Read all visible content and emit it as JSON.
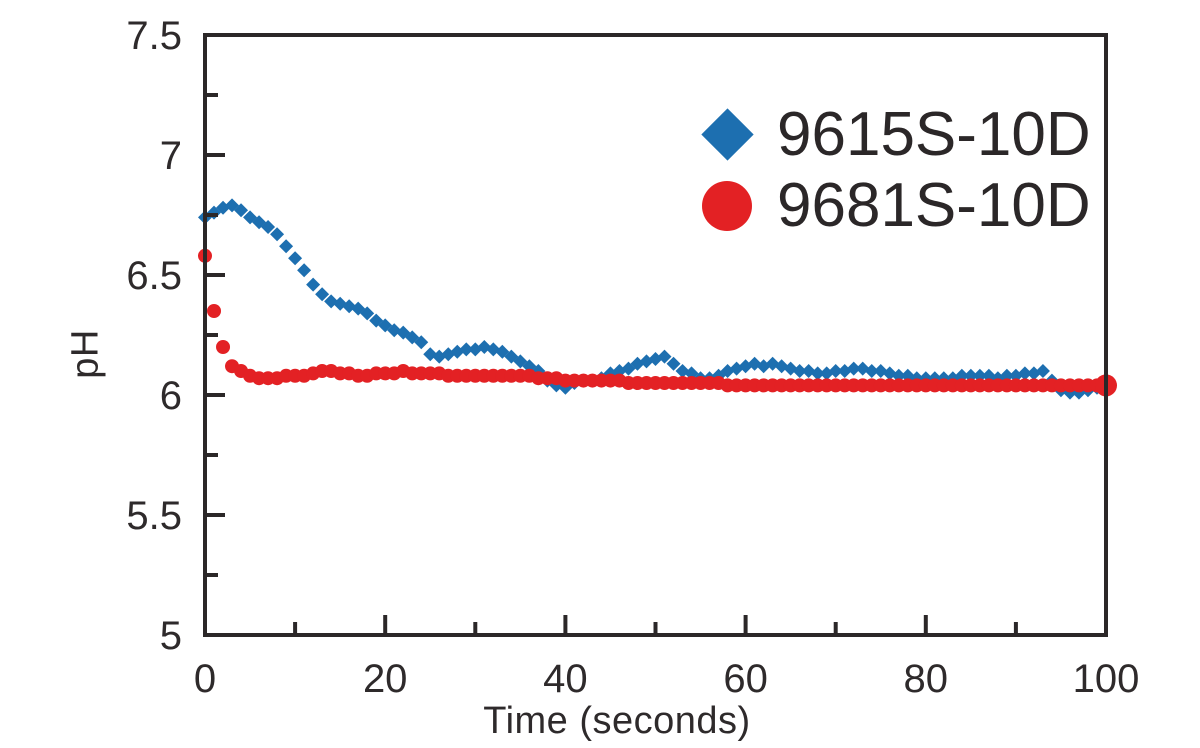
{
  "figure": {
    "background_color": "#ffffff",
    "axis_color": "#2b2728",
    "text_color": "#2e2a2b"
  },
  "chart_data": {
    "type": "scatter",
    "title": "",
    "xlabel": "Time (seconds)",
    "ylabel": "pH",
    "xlim": [
      0,
      100
    ],
    "ylim": [
      5,
      7.5
    ],
    "grid": false,
    "legend_position": "upper right",
    "x_axis": {
      "major_tick_values": [
        0,
        20,
        40,
        60,
        80,
        100
      ],
      "major_tick_labels": [
        "0",
        "20",
        "40",
        "60",
        "80",
        "100"
      ],
      "minor_tick_values": [
        10,
        30,
        50,
        70,
        90
      ]
    },
    "y_axis": {
      "major_tick_values": [
        5,
        5.5,
        6,
        6.5,
        7,
        7.5
      ],
      "major_tick_labels": [
        "5",
        "5.5",
        "6",
        "6.5",
        "7",
        "7.5"
      ],
      "minor_tick_values": [
        5.25,
        5.75,
        6.25,
        6.75,
        7.25
      ]
    },
    "series": [
      {
        "name": "9615S-10D",
        "marker": "diamond",
        "color": "#1d6fb0",
        "x": [
          0,
          1,
          2,
          3,
          4,
          5,
          6,
          7,
          8,
          9,
          10,
          11,
          12,
          13,
          14,
          15,
          16,
          17,
          18,
          19,
          20,
          21,
          22,
          23,
          24,
          25,
          26,
          27,
          28,
          29,
          30,
          31,
          32,
          33,
          34,
          35,
          36,
          37,
          38,
          39,
          40,
          41,
          42,
          43,
          44,
          45,
          46,
          47,
          48,
          49,
          50,
          51,
          52,
          53,
          54,
          55,
          56,
          57,
          58,
          59,
          60,
          61,
          62,
          63,
          64,
          65,
          66,
          67,
          68,
          69,
          70,
          71,
          72,
          73,
          74,
          75,
          76,
          77,
          78,
          79,
          80,
          81,
          82,
          83,
          84,
          85,
          86,
          87,
          88,
          89,
          90,
          91,
          92,
          93,
          94,
          95,
          96,
          97,
          98,
          99
        ],
        "y": [
          6.74,
          6.76,
          6.78,
          6.79,
          6.77,
          6.74,
          6.72,
          6.7,
          6.67,
          6.62,
          6.57,
          6.52,
          6.46,
          6.42,
          6.39,
          6.38,
          6.37,
          6.36,
          6.34,
          6.31,
          6.29,
          6.27,
          6.26,
          6.24,
          6.22,
          6.17,
          6.16,
          6.17,
          6.18,
          6.19,
          6.19,
          6.2,
          6.19,
          6.18,
          6.16,
          6.14,
          6.12,
          6.1,
          6.06,
          6.04,
          6.03,
          6.05,
          6.06,
          6.06,
          6.07,
          6.09,
          6.1,
          6.11,
          6.13,
          6.14,
          6.15,
          6.16,
          6.13,
          6.1,
          6.09,
          6.07,
          6.07,
          6.08,
          6.1,
          6.11,
          6.12,
          6.13,
          6.12,
          6.13,
          6.12,
          6.11,
          6.1,
          6.1,
          6.09,
          6.09,
          6.1,
          6.1,
          6.11,
          6.11,
          6.1,
          6.1,
          6.09,
          6.08,
          6.08,
          6.07,
          6.07,
          6.07,
          6.07,
          6.07,
          6.08,
          6.08,
          6.08,
          6.08,
          6.07,
          6.08,
          6.08,
          6.09,
          6.09,
          6.1,
          6.06,
          6.02,
          6.01,
          6.01,
          6.02,
          6.03
        ]
      },
      {
        "name": "9681S-10D",
        "marker": "circle",
        "color": "#e32124",
        "x": [
          0,
          1,
          2,
          3,
          4,
          5,
          6,
          7,
          8,
          9,
          10,
          11,
          12,
          13,
          14,
          15,
          16,
          17,
          18,
          19,
          20,
          21,
          22,
          23,
          24,
          25,
          26,
          27,
          28,
          29,
          30,
          31,
          32,
          33,
          34,
          35,
          36,
          37,
          38,
          39,
          40,
          41,
          42,
          43,
          44,
          45,
          46,
          47,
          48,
          49,
          50,
          51,
          52,
          53,
          54,
          55,
          56,
          57,
          58,
          59,
          60,
          61,
          62,
          63,
          64,
          65,
          66,
          67,
          68,
          69,
          70,
          71,
          72,
          73,
          74,
          75,
          76,
          77,
          78,
          79,
          80,
          81,
          82,
          83,
          84,
          85,
          86,
          87,
          88,
          89,
          90,
          91,
          92,
          93,
          94,
          95,
          96,
          97,
          98,
          99,
          100
        ],
        "y": [
          6.58,
          6.35,
          6.2,
          6.12,
          6.1,
          6.08,
          6.07,
          6.07,
          6.07,
          6.08,
          6.08,
          6.08,
          6.09,
          6.1,
          6.1,
          6.09,
          6.09,
          6.08,
          6.08,
          6.09,
          6.09,
          6.09,
          6.1,
          6.09,
          6.09,
          6.09,
          6.09,
          6.08,
          6.08,
          6.08,
          6.08,
          6.08,
          6.08,
          6.08,
          6.08,
          6.08,
          6.08,
          6.07,
          6.07,
          6.07,
          6.06,
          6.06,
          6.06,
          6.06,
          6.06,
          6.06,
          6.06,
          6.05,
          6.05,
          6.05,
          6.05,
          6.05,
          6.05,
          6.05,
          6.05,
          6.05,
          6.05,
          6.05,
          6.04,
          6.04,
          6.04,
          6.04,
          6.04,
          6.04,
          6.04,
          6.04,
          6.04,
          6.04,
          6.04,
          6.04,
          6.04,
          6.04,
          6.04,
          6.04,
          6.04,
          6.04,
          6.04,
          6.04,
          6.04,
          6.04,
          6.04,
          6.04,
          6.04,
          6.04,
          6.04,
          6.04,
          6.04,
          6.04,
          6.04,
          6.04,
          6.04,
          6.04,
          6.04,
          6.04,
          6.04,
          6.04,
          6.04,
          6.04,
          6.04,
          6.04,
          6.04
        ]
      }
    ]
  },
  "legend": {
    "items": [
      {
        "label": "9615S-10D",
        "marker": "diamond",
        "color": "#1d6fb0"
      },
      {
        "label": "9681S-10D",
        "marker": "circle",
        "color": "#e32124"
      }
    ]
  }
}
